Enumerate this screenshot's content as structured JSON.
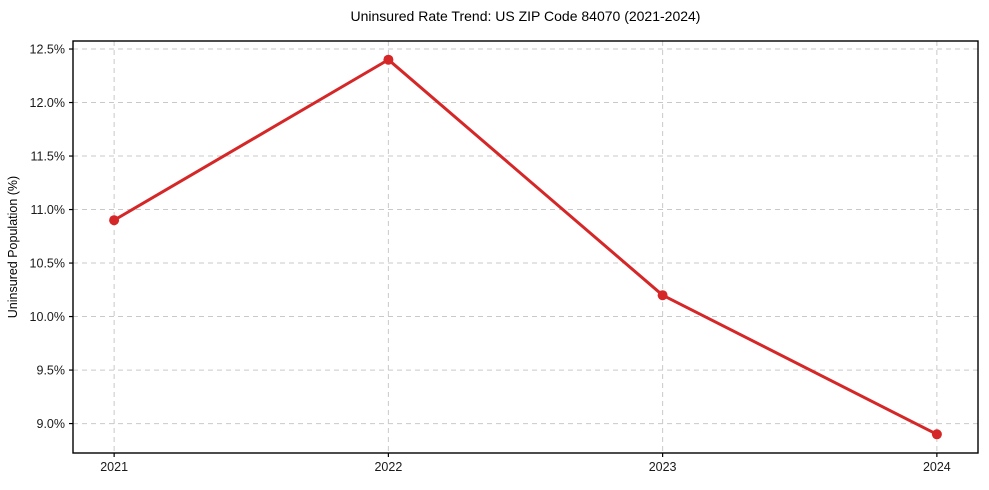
{
  "page": {
    "background": "#ffffff"
  },
  "chart_data": {
    "type": "line",
    "title": "Uninsured Rate Trend: US ZIP Code 84070 (2021-2024)",
    "xlabel": "",
    "ylabel": "Uninsured Population (%)",
    "x": [
      2021,
      2022,
      2023,
      2024
    ],
    "values": [
      10.9,
      12.4,
      10.2,
      8.9
    ],
    "xlim": [
      2020.85,
      2024.15
    ],
    "ylim": [
      8.725,
      12.575
    ],
    "xticks": [
      {
        "value": 2021,
        "label": "2021"
      },
      {
        "value": 2022,
        "label": "2022"
      },
      {
        "value": 2023,
        "label": "2023"
      },
      {
        "value": 2024,
        "label": "2024"
      }
    ],
    "yticks": [
      {
        "value": 12.5,
        "label": "12.5%"
      },
      {
        "value": 12.0,
        "label": "12.0%"
      },
      {
        "value": 11.5,
        "label": "11.5%"
      },
      {
        "value": 11.0,
        "label": "11.0%"
      },
      {
        "value": 10.5,
        "label": "10.5%"
      },
      {
        "value": 10.0,
        "label": "10.0%"
      },
      {
        "value": 9.5,
        "label": "9.5%"
      },
      {
        "value": 9.0,
        "label": "9.0%"
      }
    ],
    "legend": "none",
    "grid": {
      "visible": true,
      "style": "dashed",
      "color": "#c9c9c9"
    },
    "colors": {
      "line": "#d62728",
      "marker": "#d62728",
      "axis": "#000000",
      "text": "#1a1a1a",
      "background": "#ffffff"
    },
    "marker_diameter": 10,
    "line_width": 3
  }
}
